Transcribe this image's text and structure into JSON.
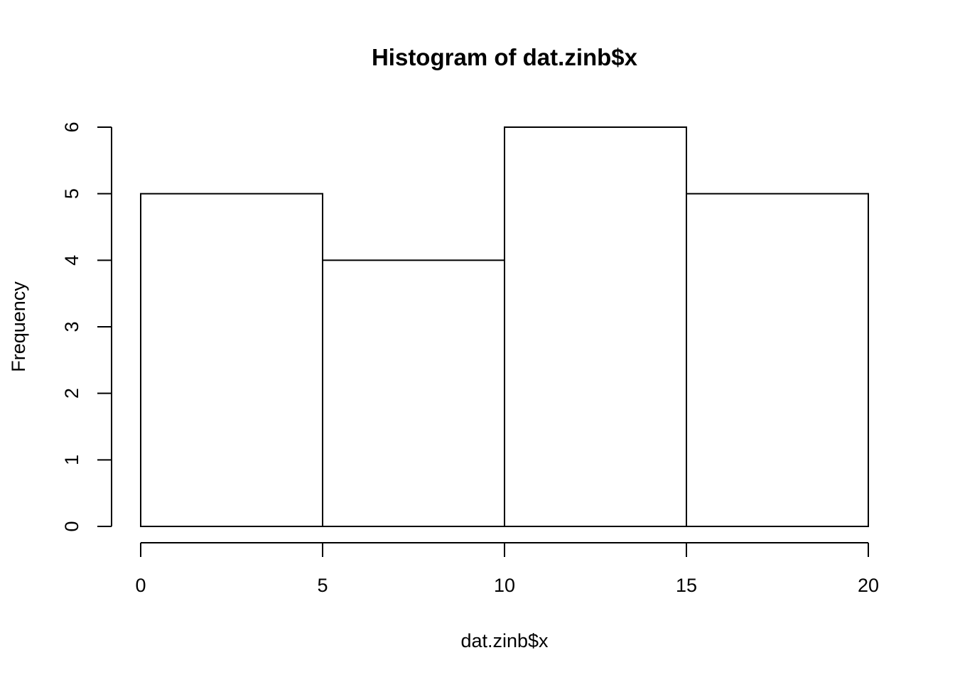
{
  "chart_data": {
    "type": "bar",
    "title": "Histogram of dat.zinb$x",
    "xlabel": "dat.zinb$x",
    "ylabel": "Frequency",
    "bins": [
      {
        "start": 0,
        "end": 5,
        "count": 5
      },
      {
        "start": 5,
        "end": 10,
        "count": 4
      },
      {
        "start": 10,
        "end": 15,
        "count": 6
      },
      {
        "start": 15,
        "end": 20,
        "count": 5
      }
    ],
    "xlim": [
      0,
      20
    ],
    "ylim": [
      0,
      6
    ],
    "x_ticks": [
      0,
      5,
      10,
      15,
      20
    ],
    "y_ticks": [
      0,
      1,
      2,
      3,
      4,
      5,
      6
    ],
    "grid": false,
    "bar_fill": "#ffffff",
    "bar_stroke": "#000000"
  }
}
